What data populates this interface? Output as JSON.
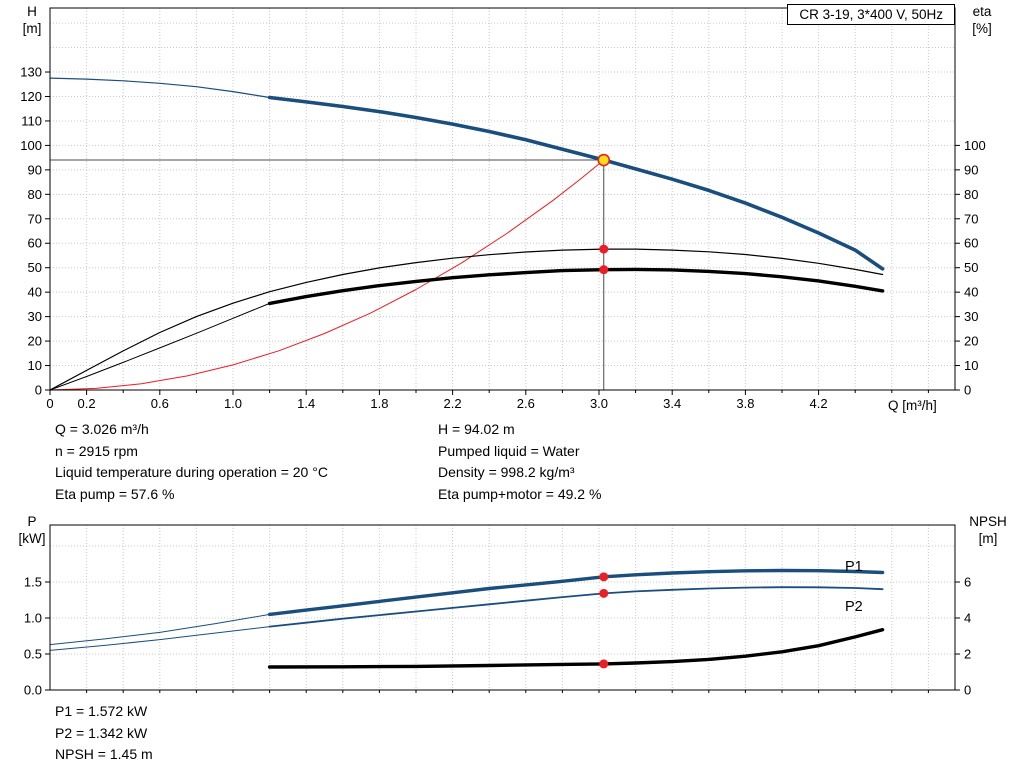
{
  "colors": {
    "curve_blue": "#1a4e7e",
    "curve_black": "#000000",
    "curve_red": "#ee1c25",
    "dot_red": "#ee1c25",
    "marker_fill": "#ffe014",
    "marker_stroke": "#ee1c25",
    "crosshair": "#4d4d4d",
    "grid": "#c8c8c8",
    "axis": "#000000",
    "label_blue": "#1a4e7e"
  },
  "info_top": {
    "left": [
      "Q = 3.026 m³/h",
      "n = 2915 rpm",
      "Liquid temperature during operation = 20 °C",
      "Eta pump = 57.6 %"
    ],
    "right": [
      "H = 94.02 m",
      "Pumped liquid = Water",
      "Density = 998.2 kg/m³",
      "Eta pump+motor = 49.2 %"
    ]
  },
  "info_bottom": [
    "P1 = 1.572 kW",
    "P2 = 1.342 kW",
    "NPSH = 1.45 m"
  ],
  "chart_data": [
    {
      "type": "line",
      "title": "CR 3-19, 3*400 V, 50Hz",
      "x_axis": {
        "label": "Q [m³/h]",
        "min": 0,
        "max": 4.95,
        "minor_tick_step": 0.2,
        "ticks": [
          [
            0,
            "0"
          ],
          [
            0.2,
            "0.2"
          ],
          [
            0.6,
            "0.6"
          ],
          [
            1.0,
            "1.0"
          ],
          [
            1.4,
            "1.4"
          ],
          [
            1.8,
            "1.8"
          ],
          [
            2.2,
            "2.2"
          ],
          [
            2.6,
            "2.6"
          ],
          [
            3.0,
            "3.0"
          ],
          [
            3.4,
            "3.4"
          ],
          [
            3.8,
            "3.8"
          ],
          [
            4.2,
            "4.2"
          ]
        ]
      },
      "y_left_axis": {
        "title": "H",
        "unit": "[m]",
        "min": 0,
        "max": 156,
        "ticks": [
          0,
          10,
          20,
          30,
          40,
          50,
          60,
          70,
          80,
          90,
          100,
          110,
          120,
          130
        ]
      },
      "y_right_axis": {
        "title": "eta",
        "unit": "[%]",
        "min": 0,
        "max": 156,
        "ticks": [
          0,
          10,
          20,
          30,
          40,
          50,
          60,
          70,
          80,
          90,
          100
        ]
      },
      "grid": true,
      "duty_point": {
        "q": 3.026,
        "h": 94.02
      },
      "eta_markers": [
        {
          "q": 3.026,
          "value": 57.6
        },
        {
          "q": 3.026,
          "value": 49.2
        }
      ],
      "series": [
        {
          "name": "head-curve-lead-in",
          "axis": "H",
          "color": "blue",
          "width": 1.2,
          "points": [
            [
              0,
              127.5
            ],
            [
              0.2,
              127.1
            ],
            [
              0.4,
              126.4
            ],
            [
              0.6,
              125.4
            ],
            [
              0.8,
              124.0
            ],
            [
              1.0,
              122.0
            ],
            [
              1.2,
              119.6
            ]
          ]
        },
        {
          "name": "head-curve",
          "axis": "H",
          "color": "blue",
          "width": 3.6,
          "points": [
            [
              1.2,
              119.6
            ],
            [
              1.4,
              117.8
            ],
            [
              1.6,
              115.9
            ],
            [
              1.8,
              113.8
            ],
            [
              2.0,
              111.4
            ],
            [
              2.2,
              108.7
            ],
            [
              2.4,
              105.7
            ],
            [
              2.6,
              102.3
            ],
            [
              2.8,
              98.4
            ],
            [
              3.026,
              94.02
            ],
            [
              3.2,
              90.4
            ],
            [
              3.4,
              86.2
            ],
            [
              3.6,
              81.6
            ],
            [
              3.8,
              76.4
            ],
            [
              4.0,
              70.6
            ],
            [
              4.2,
              64.2
            ],
            [
              4.4,
              57.2
            ],
            [
              4.55,
              49.5
            ]
          ]
        },
        {
          "name": "system-curve",
          "axis": "H",
          "color": "red",
          "width": 1,
          "points": [
            [
              0,
              0
            ],
            [
              0.25,
              0.64
            ],
            [
              0.5,
              2.57
            ],
            [
              0.75,
              5.77
            ],
            [
              1.0,
              10.27
            ],
            [
              1.25,
              16.04
            ],
            [
              1.5,
              23.1
            ],
            [
              1.75,
              31.4
            ],
            [
              2.0,
              41.1
            ],
            [
              2.25,
              52.0
            ],
            [
              2.5,
              64.2
            ],
            [
              2.75,
              77.6
            ],
            [
              2.9,
              86.3
            ],
            [
              3.026,
              94.02
            ]
          ]
        },
        {
          "name": "eta-pump-curve",
          "axis": "eta",
          "color": "black",
          "width": 1.2,
          "points": [
            [
              0,
              0
            ],
            [
              0.2,
              8
            ],
            [
              0.4,
              16
            ],
            [
              0.6,
              23.5
            ],
            [
              0.8,
              30
            ],
            [
              1.0,
              35.5
            ],
            [
              1.2,
              40.2
            ],
            [
              1.4,
              44
            ],
            [
              1.6,
              47.2
            ],
            [
              1.8,
              49.9
            ],
            [
              2.0,
              52.1
            ],
            [
              2.2,
              53.9
            ],
            [
              2.4,
              55.3
            ],
            [
              2.6,
              56.4
            ],
            [
              2.8,
              57.2
            ],
            [
              3.026,
              57.6
            ],
            [
              3.2,
              57.6
            ],
            [
              3.4,
              57.2
            ],
            [
              3.6,
              56.5
            ],
            [
              3.8,
              55.4
            ],
            [
              4.0,
              53.8
            ],
            [
              4.2,
              51.8
            ],
            [
              4.4,
              49.3
            ],
            [
              4.55,
              47.2
            ]
          ]
        },
        {
          "name": "eta-pump-motor-lead-in",
          "axis": "eta",
          "color": "black",
          "width": 1,
          "points": [
            [
              0,
              0
            ],
            [
              0.2,
              5.5
            ],
            [
              0.4,
              11.3
            ],
            [
              0.6,
              17.2
            ],
            [
              0.8,
              23.2
            ],
            [
              1.0,
              29.3
            ],
            [
              1.2,
              35.4
            ]
          ]
        },
        {
          "name": "eta-pump-motor-curve",
          "axis": "eta",
          "color": "black",
          "width": 3.4,
          "points": [
            [
              1.2,
              35.4
            ],
            [
              1.4,
              38.2
            ],
            [
              1.6,
              40.6
            ],
            [
              1.8,
              42.7
            ],
            [
              2.0,
              44.4
            ],
            [
              2.2,
              45.9
            ],
            [
              2.4,
              47.1
            ],
            [
              2.6,
              48.0
            ],
            [
              2.8,
              48.8
            ],
            [
              3.026,
              49.2
            ],
            [
              3.2,
              49.3
            ],
            [
              3.4,
              49.1
            ],
            [
              3.6,
              48.5
            ],
            [
              3.8,
              47.6
            ],
            [
              4.0,
              46.3
            ],
            [
              4.2,
              44.6
            ],
            [
              4.4,
              42.4
            ],
            [
              4.55,
              40.5
            ]
          ]
        }
      ]
    },
    {
      "type": "line",
      "x_axis": {
        "shared_with_top": true,
        "min": 0,
        "max": 4.95,
        "minor_tick_step": 0.2
      },
      "y_left_axis": {
        "title": "P",
        "unit": "[kW]",
        "min": 0,
        "max": 2.29,
        "ticks": [
          [
            0,
            "0.0"
          ],
          [
            0.5,
            "0.5"
          ],
          [
            1,
            "1.0"
          ],
          [
            1.5,
            "1.5"
          ]
        ]
      },
      "y_right_axis": {
        "title": "NPSH",
        "unit": "[m]",
        "min": 0,
        "max": 9.2,
        "ticks": [
          [
            0,
            "0"
          ],
          [
            2,
            "2"
          ],
          [
            4,
            "4"
          ],
          [
            6,
            "6"
          ]
        ]
      },
      "grid": true,
      "markers": [
        {
          "q": 3.026,
          "axis": "P",
          "value": 1.572
        },
        {
          "q": 3.026,
          "axis": "P",
          "value": 1.342
        },
        {
          "q": 3.026,
          "axis": "NPSH",
          "value": 1.45
        }
      ],
      "series_labels": [
        {
          "text": "P1"
        },
        {
          "text": "P2"
        }
      ],
      "series": [
        {
          "name": "p1-lead-in",
          "axis": "P",
          "color": "blue",
          "width": 1,
          "points": [
            [
              0,
              0.63
            ],
            [
              0.3,
              0.71
            ],
            [
              0.6,
              0.8
            ],
            [
              0.9,
              0.92
            ],
            [
              1.2,
              1.05
            ]
          ]
        },
        {
          "name": "p1-curve",
          "axis": "P",
          "color": "blue",
          "width": 3.4,
          "label": "P1",
          "points": [
            [
              1.2,
              1.05
            ],
            [
              1.4,
              1.11
            ],
            [
              1.6,
              1.17
            ],
            [
              1.8,
              1.23
            ],
            [
              2.0,
              1.29
            ],
            [
              2.2,
              1.35
            ],
            [
              2.4,
              1.41
            ],
            [
              2.6,
              1.46
            ],
            [
              2.8,
              1.51
            ],
            [
              3.026,
              1.572
            ],
            [
              3.2,
              1.6
            ],
            [
              3.4,
              1.625
            ],
            [
              3.6,
              1.643
            ],
            [
              3.8,
              1.655
            ],
            [
              4.0,
              1.66
            ],
            [
              4.2,
              1.657
            ],
            [
              4.4,
              1.646
            ],
            [
              4.55,
              1.632
            ]
          ]
        },
        {
          "name": "p2-lead-in",
          "axis": "P",
          "color": "blue",
          "width": 1,
          "points": [
            [
              0,
              0.55
            ],
            [
              0.3,
              0.62
            ],
            [
              0.6,
              0.7
            ],
            [
              0.9,
              0.79
            ],
            [
              1.2,
              0.88
            ]
          ]
        },
        {
          "name": "p2-curve",
          "axis": "P",
          "color": "blue",
          "width": 1.8,
          "label": "P2",
          "points": [
            [
              1.2,
              0.88
            ],
            [
              1.4,
              0.935
            ],
            [
              1.6,
              0.99
            ],
            [
              1.8,
              1.04
            ],
            [
              2.0,
              1.09
            ],
            [
              2.2,
              1.14
            ],
            [
              2.4,
              1.19
            ],
            [
              2.6,
              1.24
            ],
            [
              2.8,
              1.29
            ],
            [
              3.026,
              1.342
            ],
            [
              3.2,
              1.37
            ],
            [
              3.4,
              1.392
            ],
            [
              3.6,
              1.41
            ],
            [
              3.8,
              1.422
            ],
            [
              4.0,
              1.428
            ],
            [
              4.2,
              1.426
            ],
            [
              4.4,
              1.416
            ],
            [
              4.55,
              1.4
            ]
          ]
        },
        {
          "name": "npsh-curve",
          "axis": "NPSH",
          "color": "black",
          "width": 3.4,
          "points": [
            [
              1.2,
              1.28
            ],
            [
              1.6,
              1.29
            ],
            [
              2.0,
              1.31
            ],
            [
              2.4,
              1.36
            ],
            [
              2.8,
              1.42
            ],
            [
              3.026,
              1.45
            ],
            [
              3.2,
              1.5
            ],
            [
              3.4,
              1.58
            ],
            [
              3.6,
              1.7
            ],
            [
              3.8,
              1.88
            ],
            [
              4.0,
              2.12
            ],
            [
              4.2,
              2.46
            ],
            [
              4.4,
              2.95
            ],
            [
              4.55,
              3.35
            ]
          ]
        }
      ]
    }
  ]
}
